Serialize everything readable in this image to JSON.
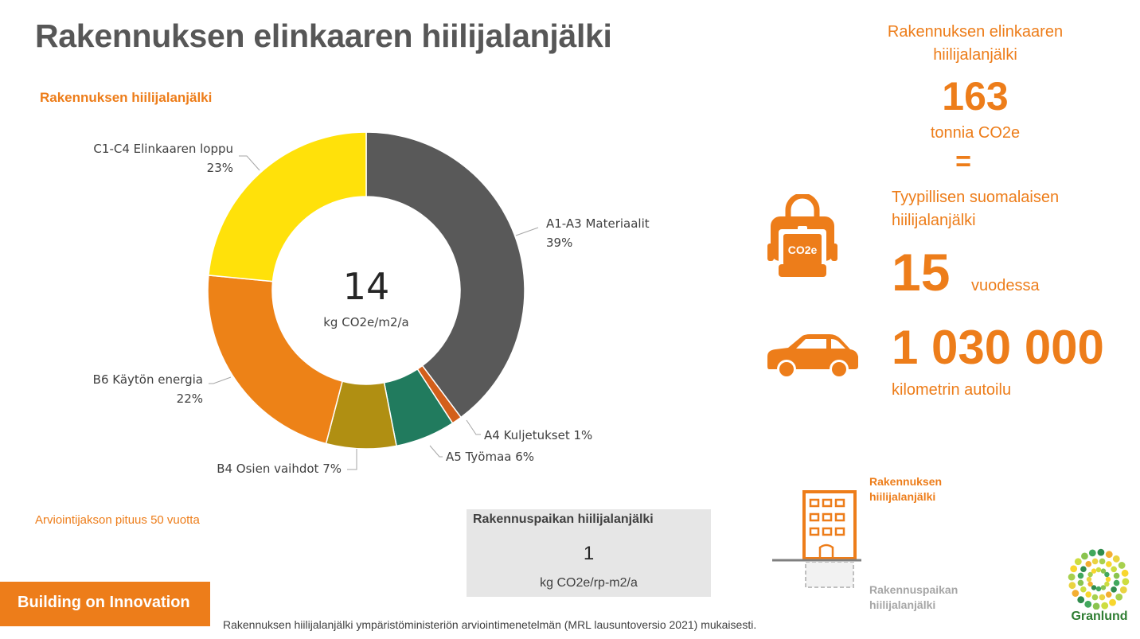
{
  "title": "Rakennuksen elinkaaren hiilijalanjälki",
  "chart_heading": "Rakennuksen hiilijalanjälki",
  "chart_data": {
    "type": "pie",
    "title": "Rakennuksen hiilijalanjälki",
    "center_value": "14",
    "center_unit": "kg CO2e/m2/a",
    "segments": [
      {
        "name": "A1-A3 Materiaalit",
        "value": 39,
        "label": "39%",
        "color": "#595959"
      },
      {
        "name": "A4 Kuljetukset",
        "value": 1,
        "label": "1%",
        "color": "#D35F1B"
      },
      {
        "name": "A5 Työmaa",
        "value": 6,
        "label": "6%",
        "color": "#217B5E"
      },
      {
        "name": "B4 Osien vaihdot",
        "value": 7,
        "label": "7%",
        "color": "#B08F12"
      },
      {
        "name": "B6 Käytön energia",
        "value": 22,
        "label": "22%",
        "color": "#ED8217"
      },
      {
        "name": "C1-C4 Elinkaaren loppu",
        "value": 23,
        "label": "23%",
        "color": "#FFE10A"
      }
    ]
  },
  "period_note": "Arviointijakson pituus 50 vuotta",
  "site_box": {
    "title": "Rakennuspaikan hiilijalanjälki",
    "value": "1",
    "unit": "kg CO2e/rp-m2/a"
  },
  "right_panel": {
    "total_title": "Rakennuksen elinkaaren hiilijalanjälki",
    "total_value": "163",
    "total_unit": "tonnia CO2e",
    "equals": "=",
    "typical_label": "Tyypillisen suomalaisen hiilijalanjälki",
    "years_value": "15",
    "years_unit": "vuodessa",
    "km_value": "1 030 000",
    "km_unit": "kilometrin autoilu",
    "bag_icon_text": "CO2e"
  },
  "diagram_legend": {
    "building": "Rakennuksen hiilijalanjälki",
    "site": "Rakennuspaikan hiilijalanjälki"
  },
  "footer": {
    "band_text": "Building on Innovation",
    "note": "Rakennuksen hiilijalanjälki ympäristöministeriön arviointimenetelmän (MRL lausuntoversio 2021) mukaisesti."
  },
  "logo": {
    "text": "Granlund"
  },
  "colors": {
    "accent": "#ED7D1A",
    "title": "#575757",
    "box_bg": "#E6E6E6"
  },
  "icons": [
    "co2-bag-icon",
    "car-icon",
    "building-icon",
    "granlund-logo"
  ]
}
